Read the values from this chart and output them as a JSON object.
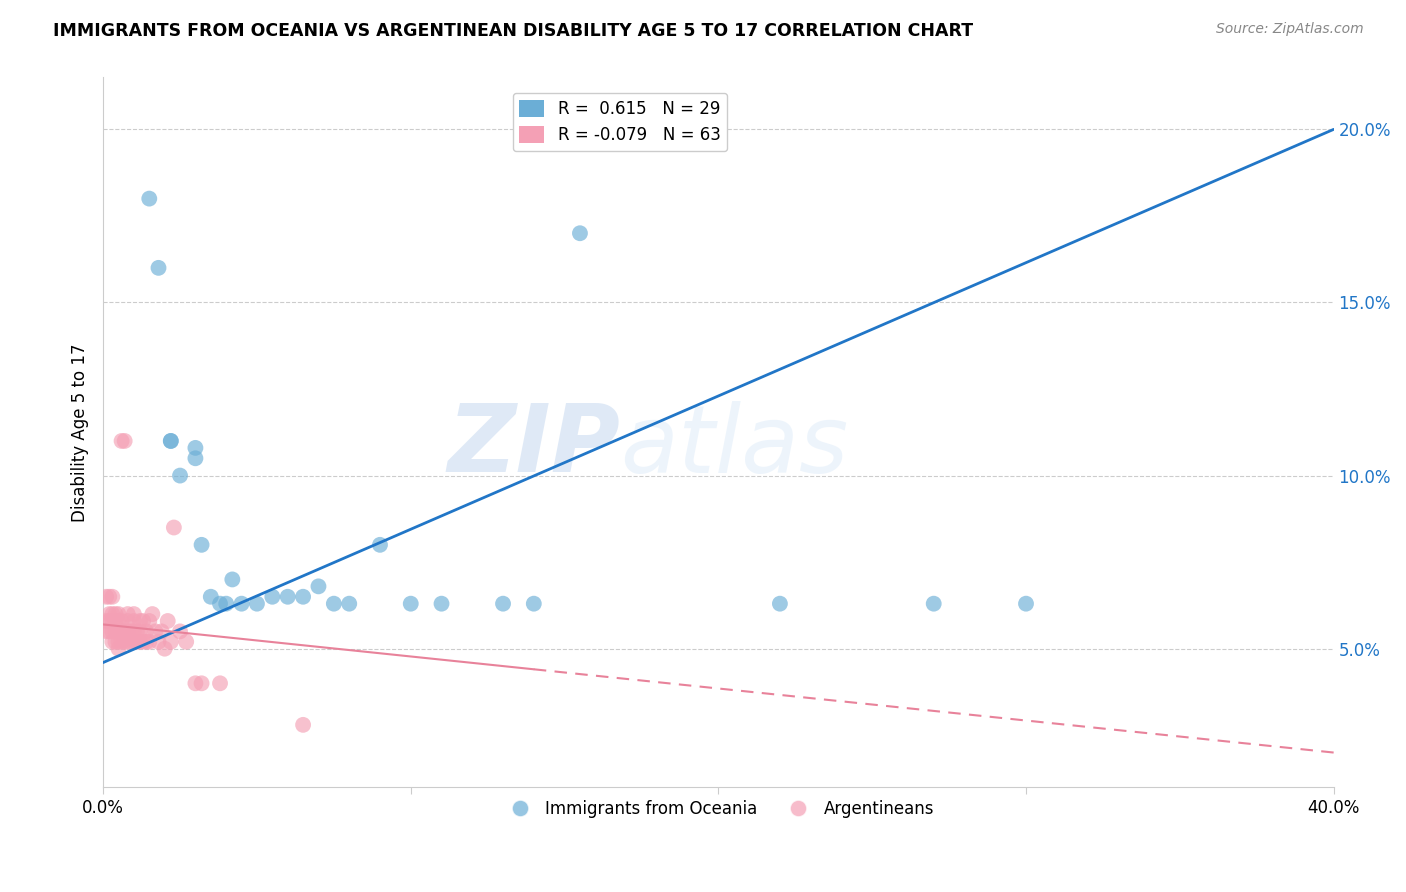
{
  "title": "IMMIGRANTS FROM OCEANIA VS ARGENTINEAN DISABILITY AGE 5 TO 17 CORRELATION CHART",
  "source": "Source: ZipAtlas.com",
  "ylabel": "Disability Age 5 to 17",
  "watermark_zip": "ZIP",
  "watermark_atlas": "atlas",
  "blue_R": 0.615,
  "blue_N": 29,
  "pink_R": -0.079,
  "pink_N": 63,
  "legend_label_blue": "Immigrants from Oceania",
  "legend_label_pink": "Argentineans",
  "blue_color": "#6baed6",
  "pink_color": "#f4a0b5",
  "blue_line_color": "#2176c7",
  "pink_line_color": "#e8829a",
  "right_yticks": [
    0.05,
    0.1,
    0.15,
    0.2
  ],
  "right_yticklabels": [
    "5.0%",
    "10.0%",
    "15.0%",
    "20.0%"
  ],
  "xlim": [
    0.0,
    0.4
  ],
  "ylim": [
    0.01,
    0.215
  ],
  "blue_scatter_x": [
    0.015,
    0.018,
    0.022,
    0.022,
    0.025,
    0.03,
    0.03,
    0.032,
    0.035,
    0.038,
    0.04,
    0.042,
    0.045,
    0.05,
    0.055,
    0.06,
    0.065,
    0.07,
    0.075,
    0.08,
    0.09,
    0.1,
    0.11,
    0.13,
    0.14,
    0.155,
    0.22,
    0.27,
    0.3
  ],
  "blue_scatter_y": [
    0.18,
    0.16,
    0.11,
    0.11,
    0.1,
    0.105,
    0.108,
    0.08,
    0.065,
    0.063,
    0.063,
    0.07,
    0.063,
    0.063,
    0.065,
    0.065,
    0.065,
    0.068,
    0.063,
    0.063,
    0.08,
    0.063,
    0.063,
    0.063,
    0.063,
    0.17,
    0.063,
    0.063,
    0.063
  ],
  "pink_scatter_x": [
    0.001,
    0.001,
    0.001,
    0.002,
    0.002,
    0.002,
    0.002,
    0.003,
    0.003,
    0.003,
    0.003,
    0.003,
    0.004,
    0.004,
    0.004,
    0.004,
    0.005,
    0.005,
    0.005,
    0.005,
    0.005,
    0.006,
    0.006,
    0.006,
    0.006,
    0.007,
    0.007,
    0.007,
    0.008,
    0.008,
    0.008,
    0.008,
    0.009,
    0.009,
    0.01,
    0.01,
    0.01,
    0.01,
    0.011,
    0.011,
    0.012,
    0.012,
    0.012,
    0.013,
    0.013,
    0.014,
    0.014,
    0.015,
    0.015,
    0.016,
    0.017,
    0.018,
    0.019,
    0.02,
    0.021,
    0.022,
    0.023,
    0.025,
    0.027,
    0.03,
    0.032,
    0.038,
    0.065
  ],
  "pink_scatter_y": [
    0.055,
    0.058,
    0.065,
    0.055,
    0.058,
    0.06,
    0.065,
    0.052,
    0.055,
    0.058,
    0.06,
    0.065,
    0.052,
    0.055,
    0.058,
    0.06,
    0.05,
    0.052,
    0.055,
    0.058,
    0.06,
    0.052,
    0.055,
    0.058,
    0.11,
    0.052,
    0.055,
    0.11,
    0.052,
    0.055,
    0.058,
    0.06,
    0.052,
    0.055,
    0.052,
    0.055,
    0.058,
    0.06,
    0.052,
    0.055,
    0.052,
    0.055,
    0.058,
    0.052,
    0.058,
    0.052,
    0.055,
    0.052,
    0.058,
    0.06,
    0.055,
    0.052,
    0.055,
    0.05,
    0.058,
    0.052,
    0.085,
    0.055,
    0.052,
    0.04,
    0.04,
    0.04,
    0.028
  ],
  "blue_line_x0": 0.0,
  "blue_line_y0": 0.046,
  "blue_line_x1": 0.4,
  "blue_line_y1": 0.2,
  "pink_line_x0": 0.0,
  "pink_line_y0": 0.057,
  "pink_line_x1": 0.4,
  "pink_line_y1": 0.02
}
